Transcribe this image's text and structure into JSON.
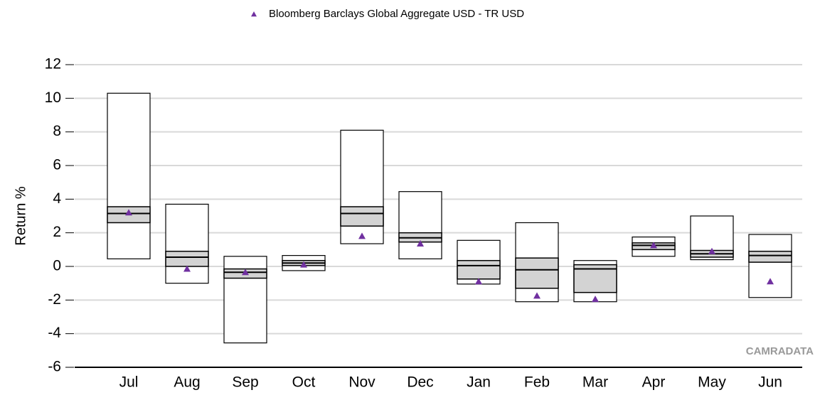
{
  "chart_data": {
    "type": "floating-box",
    "y_label": "Return %",
    "watermark": "CAMRADATA",
    "categories": [
      "Jul",
      "Aug",
      "Sep",
      "Oct",
      "Nov",
      "Dec",
      "Jan",
      "Feb",
      "Mar",
      "Apr",
      "May",
      "Jun"
    ],
    "max": [
      10.3,
      3.7,
      0.6,
      0.65,
      8.1,
      4.45,
      1.55,
      2.6,
      0.35,
      1.75,
      3.0,
      1.9
    ],
    "q3": [
      3.55,
      0.9,
      -0.15,
      0.35,
      3.55,
      2.0,
      0.35,
      0.5,
      0.1,
      1.4,
      0.95,
      0.9
    ],
    "median": [
      3.15,
      0.55,
      -0.35,
      0.2,
      3.15,
      1.7,
      0.05,
      -0.2,
      -0.15,
      1.25,
      0.75,
      0.65
    ],
    "q1": [
      2.6,
      0.0,
      -0.7,
      0.05,
      2.4,
      1.45,
      -0.75,
      -1.3,
      -1.55,
      1.0,
      0.55,
      0.25
    ],
    "min": [
      0.45,
      -1.0,
      -4.55,
      -0.25,
      1.35,
      0.45,
      -1.05,
      -2.1,
      -2.1,
      0.6,
      0.4,
      -1.85
    ],
    "box_color": "#d3d3d3",
    "series": [
      {
        "name": "Bloomberg Barclays Global Aggregate USD - TR USD",
        "color": "#7030a0",
        "values": [
          3.2,
          -0.15,
          -0.35,
          0.1,
          1.8,
          1.35,
          -0.9,
          -1.75,
          -1.95,
          1.25,
          0.9,
          -0.9
        ]
      }
    ],
    "ylim": [
      -6,
      12
    ],
    "yticks": [
      -6,
      -4,
      -2,
      0,
      2,
      4,
      6,
      8,
      10,
      12
    ],
    "grid": true,
    "legend": "top"
  }
}
